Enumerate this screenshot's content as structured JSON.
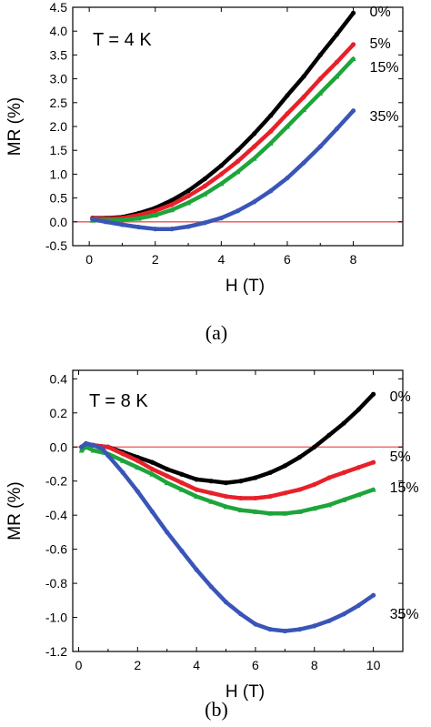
{
  "chart_data": [
    {
      "panel_label": "(a)",
      "type": "line",
      "annotation": "T = 4 K",
      "xlabel": "H (T)",
      "ylabel": "MR (%)",
      "xlim": [
        -0.5,
        9.5
      ],
      "ylim": [
        -0.5,
        4.5
      ],
      "xticks": [
        0,
        2,
        4,
        6,
        8
      ],
      "yticks": [
        -0.5,
        0.0,
        0.5,
        1.0,
        1.5,
        2.0,
        2.5,
        3.0,
        3.5,
        4.0,
        4.5
      ],
      "ytick_labels": [
        "-0.5",
        "0.0",
        "0.5",
        "1.0",
        "1.5",
        "2.0",
        "2.5",
        "3.0",
        "3.5",
        "4.0",
        "4.5"
      ],
      "reference_line": {
        "y": 0.0,
        "color": "#f05050"
      },
      "grid": false,
      "series": [
        {
          "name": "0%",
          "color": "#000000",
          "x": [
            0.1,
            0.5,
            1,
            1.5,
            2,
            2.5,
            3,
            3.5,
            4,
            4.5,
            5,
            5.5,
            6,
            6.5,
            7,
            7.5,
            8
          ],
          "y": [
            0.08,
            0.08,
            0.1,
            0.18,
            0.29,
            0.45,
            0.65,
            0.9,
            1.18,
            1.5,
            1.85,
            2.23,
            2.65,
            3.05,
            3.5,
            3.93,
            4.38
          ]
        },
        {
          "name": "5%",
          "color": "#e8202a",
          "x": [
            0.1,
            0.5,
            1,
            1.5,
            2,
            2.5,
            3,
            3.5,
            4,
            4.5,
            5,
            5.5,
            6,
            6.5,
            7,
            7.5,
            8
          ],
          "y": [
            0.07,
            0.07,
            0.08,
            0.14,
            0.23,
            0.36,
            0.54,
            0.75,
            1.0,
            1.27,
            1.58,
            1.9,
            2.27,
            2.62,
            3.0,
            3.35,
            3.72
          ]
        },
        {
          "name": "15%",
          "color": "#1ea53a",
          "x": [
            0.1,
            0.5,
            1,
            1.5,
            2,
            2.5,
            3,
            3.5,
            4,
            4.5,
            5,
            5.5,
            6,
            6.5,
            7,
            7.5,
            8
          ],
          "y": [
            0.03,
            0.03,
            0.04,
            0.07,
            0.14,
            0.25,
            0.4,
            0.58,
            0.8,
            1.05,
            1.33,
            1.65,
            2.0,
            2.35,
            2.7,
            3.05,
            3.42
          ]
        },
        {
          "name": "35%",
          "color": "#3a55b8",
          "x": [
            0.1,
            0.5,
            1,
            1.5,
            2,
            2.5,
            3,
            3.5,
            4,
            4.5,
            5,
            5.5,
            6,
            6.5,
            7,
            7.5,
            8
          ],
          "y": [
            0.05,
            0.0,
            -0.06,
            -0.11,
            -0.15,
            -0.15,
            -0.1,
            -0.02,
            0.08,
            0.23,
            0.42,
            0.65,
            0.92,
            1.24,
            1.58,
            1.95,
            2.33
          ]
        }
      ]
    },
    {
      "panel_label": "(b)",
      "type": "line",
      "annotation": "T = 8 K",
      "xlabel": "H (T)",
      "ylabel": "MR (%)",
      "xlim": [
        -0.2,
        11.0
      ],
      "ylim": [
        -1.2,
        0.45
      ],
      "xticks": [
        0,
        2,
        4,
        6,
        8,
        10
      ],
      "yticks": [
        -1.2,
        -1.0,
        -0.8,
        -0.6,
        -0.4,
        -0.2,
        0.0,
        0.2,
        0.4
      ],
      "ytick_labels": [
        "-1.2",
        "-1.0",
        "-0.8",
        "-0.6",
        "-0.4",
        "-0.2",
        "0.0",
        "0.2",
        "0.4"
      ],
      "reference_line": {
        "y": 0.0,
        "color": "#f05050"
      },
      "grid": false,
      "series": [
        {
          "name": "0%",
          "color": "#000000",
          "x": [
            0.1,
            0.25,
            0.5,
            1,
            1.5,
            2,
            2.5,
            3,
            3.5,
            4,
            4.5,
            5,
            5.5,
            6,
            6.5,
            7,
            7.5,
            8,
            8.5,
            9,
            9.5,
            10
          ],
          "y": [
            0.0,
            0.02,
            0.01,
            0.0,
            -0.03,
            -0.06,
            -0.09,
            -0.13,
            -0.16,
            -0.19,
            -0.2,
            -0.21,
            -0.2,
            -0.18,
            -0.15,
            -0.11,
            -0.06,
            0.0,
            0.07,
            0.14,
            0.22,
            0.31
          ]
        },
        {
          "name": "5%",
          "color": "#e8202a",
          "x": [
            0.1,
            0.25,
            0.5,
            1,
            1.5,
            2,
            2.5,
            3,
            3.5,
            4,
            4.5,
            5,
            5.5,
            6,
            6.5,
            7,
            7.5,
            8,
            8.5,
            9,
            9.5,
            10
          ],
          "y": [
            0.0,
            0.02,
            0.01,
            0.0,
            -0.04,
            -0.08,
            -0.13,
            -0.17,
            -0.21,
            -0.25,
            -0.27,
            -0.29,
            -0.3,
            -0.3,
            -0.29,
            -0.27,
            -0.25,
            -0.22,
            -0.18,
            -0.15,
            -0.12,
            -0.09
          ]
        },
        {
          "name": "15%",
          "color": "#1ea53a",
          "x": [
            0.1,
            0.25,
            0.5,
            1,
            1.5,
            2,
            2.5,
            3,
            3.5,
            4,
            4.5,
            5,
            5.5,
            6,
            6.5,
            7,
            7.5,
            8,
            8.5,
            9,
            9.5,
            10
          ],
          "y": [
            -0.02,
            0.0,
            -0.02,
            -0.04,
            -0.08,
            -0.12,
            -0.16,
            -0.21,
            -0.25,
            -0.29,
            -0.32,
            -0.35,
            -0.37,
            -0.38,
            -0.39,
            -0.39,
            -0.38,
            -0.36,
            -0.34,
            -0.31,
            -0.28,
            -0.25
          ]
        },
        {
          "name": "35%",
          "color": "#3a55b8",
          "x": [
            0.1,
            0.25,
            0.5,
            0.8,
            1,
            1.5,
            2,
            2.5,
            3,
            3.5,
            4,
            4.5,
            5,
            5.5,
            6,
            6.5,
            7,
            7.5,
            8,
            8.5,
            9,
            9.5,
            10
          ],
          "y": [
            0.0,
            0.02,
            0.01,
            -0.01,
            -0.05,
            -0.15,
            -0.26,
            -0.38,
            -0.5,
            -0.61,
            -0.72,
            -0.82,
            -0.91,
            -0.98,
            -1.04,
            -1.07,
            -1.08,
            -1.07,
            -1.05,
            -1.02,
            -0.98,
            -0.93,
            -0.87
          ]
        }
      ]
    }
  ]
}
